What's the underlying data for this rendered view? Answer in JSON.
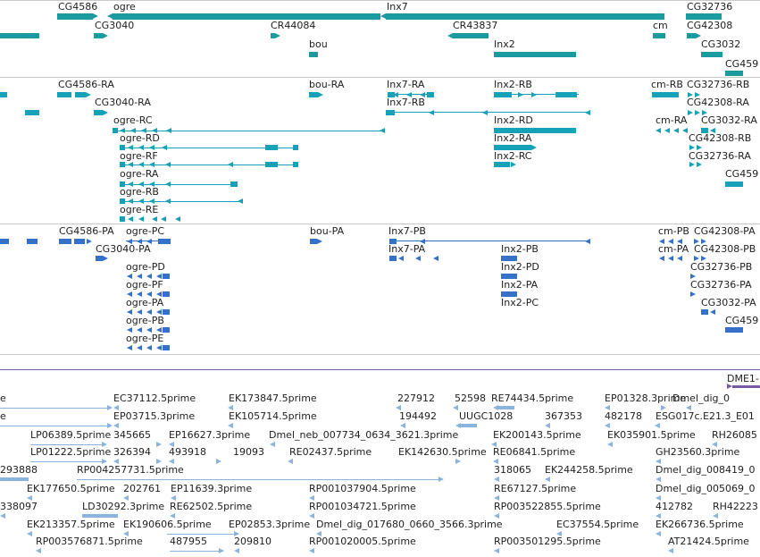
{
  "colors": {
    "gene": "#1b9aa0",
    "transcript": "#15a2b8",
    "cds": "#3571c8",
    "est": "#8ab4de",
    "separator": "#c9c9c9",
    "accent_purple": "#7a5aa6"
  },
  "tracks": {
    "genes": [
      {
        "label": "CG4586"
      },
      {
        "label": "ogre"
      },
      {
        "label": "Inx7"
      },
      {
        "label": "CG32736"
      },
      {
        "label": "CG3040"
      },
      {
        "label": "CR44084"
      },
      {
        "label": "CR43837"
      },
      {
        "label": "cm"
      },
      {
        "label": "CG42308"
      },
      {
        "label": "bou"
      },
      {
        "label": "Inx2"
      },
      {
        "label": "CG3032"
      },
      {
        "label": "CG459"
      }
    ],
    "transcripts": [
      {
        "label": "CG4586-RA"
      },
      {
        "label": "bou-RA"
      },
      {
        "label": "Inx7-RA"
      },
      {
        "label": "Inx2-RB"
      },
      {
        "label": "cm-RB"
      },
      {
        "label": "CG32736-RB"
      },
      {
        "label": "CG3040-RA"
      },
      {
        "label": "Inx7-RB"
      },
      {
        "label": "CG42308-RA"
      },
      {
        "label": "ogre-RC"
      },
      {
        "label": "Inx2-RD"
      },
      {
        "label": "cm-RA"
      },
      {
        "label": "CG3032-RA"
      },
      {
        "label": "ogre-RD"
      },
      {
        "label": "Inx2-RA"
      },
      {
        "label": "CG42308-RB"
      },
      {
        "label": "ogre-RF"
      },
      {
        "label": "Inx2-RC"
      },
      {
        "label": "CG32736-RA"
      },
      {
        "label": "ogre-RA"
      },
      {
        "label": "CG459"
      },
      {
        "label": "ogre-RB"
      },
      {
        "label": "ogre-RE"
      }
    ],
    "proteins": [
      {
        "label": "CG4586-PA"
      },
      {
        "label": "ogre-PC"
      },
      {
        "label": "bou-PA"
      },
      {
        "label": "Inx7-PB"
      },
      {
        "label": "cm-PB"
      },
      {
        "label": "CG42308-PA"
      },
      {
        "label": "CG3040-PA"
      },
      {
        "label": "Inx7-PA"
      },
      {
        "label": "Inx2-PB"
      },
      {
        "label": "cm-PA"
      },
      {
        "label": "CG42308-PB"
      },
      {
        "label": "ogre-PD"
      },
      {
        "label": "Inx2-PD"
      },
      {
        "label": "CG32736-PB"
      },
      {
        "label": "ogre-PF"
      },
      {
        "label": "Inx2-PA"
      },
      {
        "label": "CG32736-PA"
      },
      {
        "label": "ogre-PA"
      },
      {
        "label": "Inx2-PC"
      },
      {
        "label": "CG3032-PA"
      },
      {
        "label": "ogre-PB"
      },
      {
        "label": "CG459"
      },
      {
        "label": "ogre-PE"
      }
    ],
    "marker": {
      "label": "DME1-"
    },
    "ests": [
      {
        "label": "e"
      },
      {
        "label": "EC37112.5prime"
      },
      {
        "label": "EK173847.5prime"
      },
      {
        "label": "227912"
      },
      {
        "label": "52598"
      },
      {
        "label": "RE74434.5prime"
      },
      {
        "label": "EP01328.3prime"
      },
      {
        "label": "Dmel_dig_0"
      },
      {
        "label": "e"
      },
      {
        "label": "EP03715.3prime"
      },
      {
        "label": "EK105714.5prime"
      },
      {
        "label": "194492"
      },
      {
        "label": "UUGC1028"
      },
      {
        "label": "367353"
      },
      {
        "label": "482178"
      },
      {
        "label": "ESG017c.E21.3_E01"
      },
      {
        "label": "LP06389.5prime"
      },
      {
        "label": "345665"
      },
      {
        "label": "EP16627.3prime"
      },
      {
        "label": "Dmel_neb_007734_0634_3621.3prime"
      },
      {
        "label": "EK200143.5prime"
      },
      {
        "label": "EK035901.5prime"
      },
      {
        "label": "RH26085"
      },
      {
        "label": "LP01222.5prime"
      },
      {
        "label": "326394"
      },
      {
        "label": "493918"
      },
      {
        "label": "19093"
      },
      {
        "label": "RE02437.5prime"
      },
      {
        "label": "EK142630.5prime"
      },
      {
        "label": "RE06841.5prime"
      },
      {
        "label": "GH23560.3prime"
      },
      {
        "label": "293888"
      },
      {
        "label": "RP004257731.5prime"
      },
      {
        "label": "318065"
      },
      {
        "label": "EK244258.5prime"
      },
      {
        "label": "Dmel_dig_008419_0"
      },
      {
        "label": "EK177650.5prime"
      },
      {
        "label": "202761"
      },
      {
        "label": "EP11639.3prime"
      },
      {
        "label": "RP001037904.5prime"
      },
      {
        "label": "RE67127.5prime"
      },
      {
        "label": "Dmel_dig_005069_0"
      },
      {
        "label": "338097"
      },
      {
        "label": "LD30292.3prime"
      },
      {
        "label": "RE62502.5prime"
      },
      {
        "label": "RP001034721.5prime"
      },
      {
        "label": "RP003522855.5prime"
      },
      {
        "label": "412782"
      },
      {
        "label": "RH42223"
      },
      {
        "label": "EK213357.5prime"
      },
      {
        "label": "EK190606.5prime"
      },
      {
        "label": "EP02853.3prime"
      },
      {
        "label": "Dmel_dig_017680_0660_3566.3prime"
      },
      {
        "label": "EC37554.5prime"
      },
      {
        "label": "EK266736.5prime"
      },
      {
        "label": "RP003576871.5prime"
      },
      {
        "label": "487955"
      },
      {
        "label": "209810"
      },
      {
        "label": "RP001020005.5prime"
      },
      {
        "label": "RP003501295.5prime"
      },
      {
        "label": "AT21424.5prime"
      }
    ]
  }
}
